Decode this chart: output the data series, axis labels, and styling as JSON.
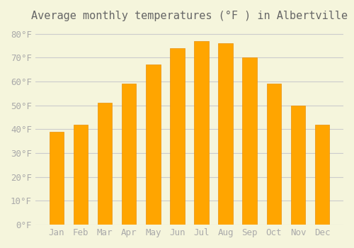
{
  "title": "Average monthly temperatures (°F ) in Albertville",
  "months": [
    "Jan",
    "Feb",
    "Mar",
    "Apr",
    "May",
    "Jun",
    "Jul",
    "Aug",
    "Sep",
    "Oct",
    "Nov",
    "Dec"
  ],
  "values": [
    39,
    42,
    51,
    59,
    67,
    74,
    77,
    76,
    70,
    59,
    50,
    42
  ],
  "bar_color": "#FFA500",
  "bar_edge_color": "#E8900A",
  "background_color": "#F5F5DC",
  "grid_color": "#CCCCCC",
  "ylim": [
    0,
    82
  ],
  "yticks": [
    0,
    10,
    20,
    30,
    40,
    50,
    60,
    70,
    80
  ],
  "title_fontsize": 11,
  "tick_fontsize": 9,
  "tick_label_color": "#AAAAAA",
  "title_color": "#666666"
}
